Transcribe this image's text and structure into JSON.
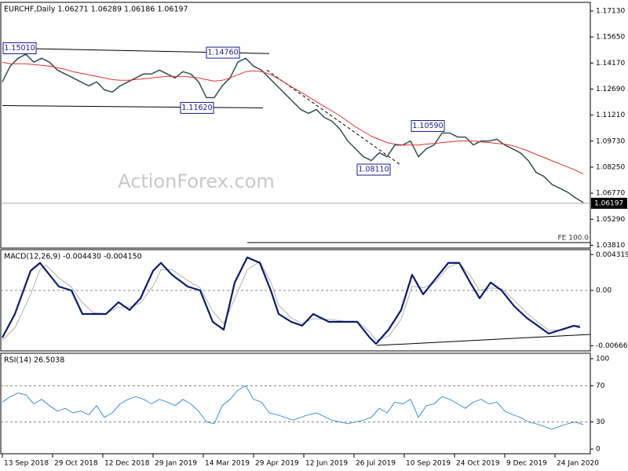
{
  "chart_data": [
    {
      "type": "line",
      "title": "EURCHF,Daily  1.06271 1.06289 1.06186 1.06197",
      "watermark": "ActionForex.com",
      "fe_label": "FE 100.0",
      "xlim": [
        -1,
        374.5
      ],
      "ylim": [
        1.0365,
        1.1762
      ],
      "yticks": [
        {
          "value": 1.1713,
          "label": "1.17130"
        },
        {
          "value": 1.1565,
          "label": "1.15650"
        },
        {
          "value": 1.1417,
          "label": "1.14170"
        },
        {
          "value": 1.1269,
          "label": "1.12690"
        },
        {
          "value": 1.1121,
          "label": "1.11210"
        },
        {
          "value": 1.0973,
          "label": "1.09730"
        },
        {
          "value": 1.0825,
          "label": "1.08250"
        },
        {
          "value": 1.0677,
          "label": "1.06770"
        },
        {
          "value": 1.0529,
          "label": "1.05290"
        },
        {
          "value": 1.0381,
          "label": "1.03810"
        }
      ],
      "x": [
        0,
        5,
        10,
        15,
        20,
        25,
        30,
        35,
        40,
        45,
        50,
        55,
        60,
        65,
        70,
        75,
        80,
        85,
        90,
        95,
        100,
        105,
        110,
        115,
        120,
        125,
        130,
        135,
        140,
        145,
        150,
        155,
        160,
        165,
        170,
        175,
        180,
        185,
        190,
        195,
        200,
        205,
        210,
        215,
        220,
        225,
        230,
        235,
        240,
        245,
        250,
        255,
        260,
        265,
        270,
        275,
        280,
        285,
        290,
        295,
        300,
        305,
        310,
        315,
        320,
        325,
        330,
        335,
        340,
        345,
        350,
        355,
        360,
        365,
        370
      ],
      "series": [
        {
          "color": "#2f4f4f",
          "width": 1.5,
          "values": [
            1.131,
            1.1399,
            1.1444,
            1.1467,
            1.1422,
            1.1444,
            1.1422,
            1.1377,
            1.1355,
            1.1332,
            1.131,
            1.1287,
            1.131,
            1.1265,
            1.1252,
            1.1287,
            1.131,
            1.1332,
            1.1355,
            1.1355,
            1.1377,
            1.1355,
            1.1332,
            1.1368,
            1.1355,
            1.131,
            1.122,
            1.122,
            1.1287,
            1.1332,
            1.1422,
            1.1444,
            1.1399,
            1.1377,
            1.1332,
            1.1287,
            1.1243,
            1.1198,
            1.1153,
            1.1131,
            1.1153,
            1.1108,
            1.1086,
            1.1041,
            1.0974,
            1.0929,
            1.0884,
            1.0862,
            1.0907,
            1.0884,
            1.0951,
            1.0951,
            1.0974,
            1.0884,
            1.0929,
            1.0951,
            1.1019,
            1.1019,
            1.0996,
            1.0996,
            1.0951,
            1.0974,
            1.0974,
            1.0983,
            1.0951,
            1.0929,
            1.0906,
            1.0862,
            1.0795,
            1.0772,
            1.0727,
            1.0705,
            1.0683,
            1.0651,
            1.0624
          ]
        },
        {
          "color": "#e03030",
          "width": 1,
          "values": [
            1.1422,
            1.1413,
            1.1413,
            1.1413,
            1.1408,
            1.1404,
            1.1399,
            1.139,
            1.1381,
            1.1368,
            1.1359,
            1.135,
            1.1341,
            1.1332,
            1.1323,
            1.1319,
            1.1319,
            1.1323,
            1.1328,
            1.1332,
            1.1337,
            1.1341,
            1.1341,
            1.1341,
            1.1337,
            1.1332,
            1.1323,
            1.1314,
            1.1319,
            1.1332,
            1.135,
            1.1368,
            1.1373,
            1.1368,
            1.1355,
            1.1332,
            1.1305,
            1.1278,
            1.1252,
            1.1225,
            1.1198,
            1.1171,
            1.1144,
            1.1117,
            1.1086,
            1.1054,
            1.1028,
            1.1001,
            1.0983,
            1.0965,
            1.0956,
            1.0951,
            1.0951,
            1.0951,
            1.0956,
            1.096,
            1.0965,
            1.0969,
            1.0974,
            1.0974,
            1.0974,
            1.0969,
            1.0965,
            1.096,
            1.0956,
            1.0947,
            1.0933,
            1.0916,
            1.0898,
            1.088,
            1.0862,
            1.0844,
            1.0826,
            1.0808,
            1.0786
          ]
        }
      ],
      "lines": [
        {
          "color": "#000000",
          "x": [
            0,
            170
          ],
          "values": [
            1.1502,
            1.1471
          ]
        },
        {
          "color": "#000000",
          "x": [
            0,
            166
          ],
          "values": [
            1.1175,
            1.1162
          ]
        },
        {
          "color": "#000000",
          "dash": true,
          "x": [
            168.5,
            253.5
          ],
          "values": [
            1.1377,
            1.0839
          ]
        },
        {
          "color": "#000000",
          "x": [
            156,
            374.5
          ],
          "values": [
            1.0396,
            1.0396
          ]
        }
      ],
      "annotations": [
        {
          "x": 11,
          "value": 1.1501,
          "label": "1.15010"
        },
        {
          "x": 140.5,
          "value": 1.1476,
          "label": "1.14760"
        },
        {
          "x": 124,
          "value": 1.1162,
          "label": "1.11620"
        },
        {
          "x": 271,
          "value": 1.1059,
          "label": "1.10590"
        },
        {
          "x": 236.5,
          "value": 1.0811,
          "label": "1.08110"
        }
      ],
      "last_price": 1.06197
    },
    {
      "type": "line",
      "title": "MACD(12,26,9) -0.004430 -0.004150",
      "xlim": [
        -1,
        374.5
      ],
      "ylim": [
        -0.00728,
        0.00491
      ],
      "yticks": [
        0.004319,
        {
          "value": 0,
          "label": "0.00"
        },
        -0.006663
      ],
      "levels": [
        0
      ],
      "x": [
        0,
        8,
        18,
        24,
        28,
        36,
        44,
        51,
        58,
        66,
        74,
        81,
        88,
        96,
        101,
        108,
        118,
        126,
        134,
        141,
        148,
        156,
        164,
        171,
        176,
        184,
        191,
        198,
        208,
        218,
        226,
        234,
        238,
        246,
        254,
        261,
        268,
        276,
        284,
        291,
        298,
        304,
        311,
        318,
        326,
        334,
        341,
        348,
        356,
        364,
        368
      ],
      "series": [
        {
          "color": "#b0b0b0",
          "width": 1,
          "values": [
            -0.006,
            -0.0045,
            -0.0005,
            0.0025,
            0.003,
            0.0015,
            0.0004,
            -0.0015,
            -0.0027,
            -0.0028,
            -0.002,
            -0.002,
            -0.0015,
            0.0005,
            0.0025,
            0.0025,
            0.0012,
            0.0003,
            -0.0025,
            -0.004,
            -0.001,
            0.0025,
            0.0035,
            0.001,
            -0.0018,
            -0.0033,
            -0.004,
            -0.0034,
            -0.0035,
            -0.0037,
            -0.0037,
            -0.005,
            -0.006,
            -0.0055,
            -0.0035,
            0.0005,
            0.0003,
            0.001,
            0.0028,
            0.0033,
            0.0018,
            0.0,
            0.0003,
            0.0002,
            -0.0012,
            -0.0027,
            -0.0038,
            -0.0048,
            -0.0048,
            -0.0043,
            -0.00415
          ]
        },
        {
          "color": "#0a1a6e",
          "width": 2.2,
          "values": [
            -0.00567,
            -0.00284,
            0.00236,
            0.00331,
            0.00236,
            0.00047,
            0,
            -0.00284,
            -0.00284,
            -0.00284,
            -0.00142,
            -0.00236,
            -0.00095,
            0.00236,
            0.00331,
            0.00189,
            0.00047,
            0,
            -0.00378,
            -0.00473,
            0.00095,
            0.00397,
            0.00331,
            0,
            -0.00284,
            -0.00378,
            -0.00425,
            -0.00284,
            -0.00378,
            -0.00378,
            -0.00378,
            -0.00567,
            -0.00643,
            -0.00473,
            -0.00236,
            0.00189,
            -0.00047,
            0.00142,
            0.00331,
            0.00331,
            0.00095,
            -0.00095,
            0.00095,
            0,
            -0.00189,
            -0.00331,
            -0.00425,
            -0.0052,
            -0.00473,
            -0.00425,
            -0.00443
          ]
        }
      ],
      "lines": [
        {
          "color": "#000000",
          "x": [
            238.5,
            374.5
          ],
          "values": [
            -0.00662,
            -0.00529
          ]
        }
      ]
    },
    {
      "type": "line",
      "title": "RSI(14) 26.5038",
      "xlim": [
        -1,
        374.5
      ],
      "ylim": [
        -5.2,
        106
      ],
      "yticks": [
        100,
        70,
        30,
        0
      ],
      "levels": [
        70,
        30
      ],
      "xticks": [
        {
          "value": 0,
          "label": "13 Sep 2018"
        },
        {
          "value": 32,
          "label": "29 Oct 2018"
        },
        {
          "value": 64,
          "label": "12 Dec 2018"
        },
        {
          "value": 96,
          "label": "29 Jan 2019"
        },
        {
          "value": 128,
          "label": "14 Mar 2019"
        },
        {
          "value": 160,
          "label": "29 Apr 2019"
        },
        {
          "value": 192,
          "label": "12 Jun 2019"
        },
        {
          "value": 224,
          "label": "26 Jul 2019"
        },
        {
          "value": 256,
          "label": "10 Sep 2019"
        },
        {
          "value": 288,
          "label": "24 Oct 2019"
        },
        {
          "value": 320,
          "label": "9 Dec 2019"
        },
        {
          "value": 352,
          "label": "24 Jan 2020"
        }
      ],
      "x": [
        0,
        5,
        10,
        15,
        20,
        25,
        30,
        35,
        40,
        45,
        50,
        55,
        60,
        65,
        70,
        75,
        80,
        85,
        90,
        95,
        100,
        105,
        110,
        115,
        120,
        125,
        130,
        135,
        140,
        145,
        150,
        155,
        160,
        165,
        170,
        175,
        180,
        185,
        190,
        195,
        200,
        205,
        210,
        215,
        220,
        225,
        230,
        235,
        240,
        245,
        250,
        255,
        260,
        265,
        270,
        275,
        280,
        285,
        290,
        295,
        300,
        305,
        310,
        315,
        320,
        325,
        330,
        335,
        340,
        345,
        350,
        355,
        360,
        365,
        370
      ],
      "series": [
        {
          "color": "#3a8fd8",
          "width": 1,
          "values": [
            52,
            58,
            62,
            60,
            50,
            55,
            48,
            42,
            45,
            40,
            42,
            38,
            48,
            35,
            40,
            50,
            55,
            58,
            55,
            50,
            55,
            52,
            48,
            55,
            50,
            42,
            30,
            28,
            48,
            55,
            65,
            70,
            55,
            52,
            40,
            38,
            35,
            32,
            35,
            38,
            40,
            36,
            32,
            30,
            28,
            30,
            32,
            35,
            45,
            40,
            52,
            50,
            55,
            35,
            48,
            50,
            58,
            55,
            50,
            45,
            52,
            55,
            50,
            52,
            42,
            38,
            35,
            30,
            28,
            25,
            22,
            25,
            28,
            30,
            27
          ]
        }
      ]
    }
  ]
}
